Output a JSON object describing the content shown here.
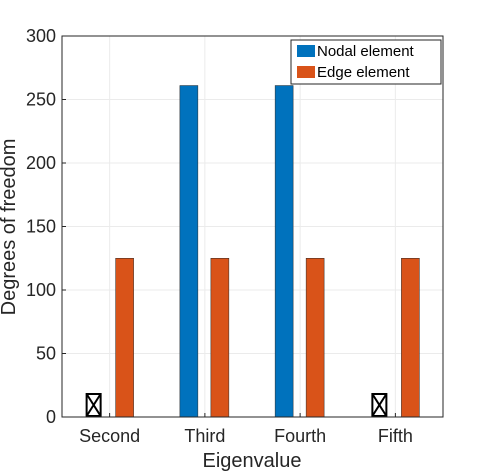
{
  "chart_data": {
    "type": "bar",
    "title": "",
    "xlabel": "Eigenvalue",
    "ylabel": "Degrees of freedom",
    "ylim": [
      0,
      300
    ],
    "yticks": [
      0,
      50,
      100,
      150,
      200,
      250,
      300
    ],
    "categories": [
      "Second",
      "Third",
      "Fourth",
      "Fifth"
    ],
    "series": [
      {
        "name": "Nodal element",
        "color": "#0072BD",
        "values": [
          null,
          261,
          261,
          null
        ]
      },
      {
        "name": "Edge element",
        "color": "#D95319",
        "values": [
          125,
          125,
          125,
          125
        ]
      }
    ],
    "missing_marker": "crossed-box",
    "grid": true,
    "legend": "top-right"
  }
}
